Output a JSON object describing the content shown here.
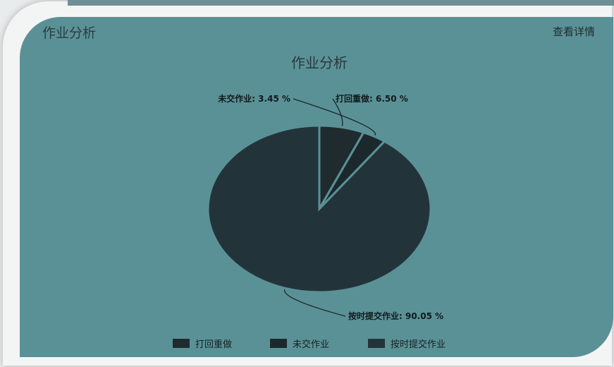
{
  "header": {
    "title": "作业分析",
    "detail_link": "查看详情"
  },
  "colors": {
    "panel_bg": "#5a9197",
    "slice_dark": "#1f2f33",
    "slice_mid": "#22343a",
    "label_text": "#101a1c"
  },
  "chart_data": {
    "type": "pie",
    "title": "作业分析",
    "slices": [
      {
        "name": "打回重做",
        "value": 6.5,
        "label": "打回重做: 6.50 %",
        "color": "#1f2b2e"
      },
      {
        "name": "未交作业",
        "value": 3.45,
        "label": "未交作业: 3.45 %",
        "color": "#1c292c"
      },
      {
        "name": "按时提交作业",
        "value": 90.05,
        "label": "按时提交作业: 90.05 %",
        "color": "#22343a"
      }
    ],
    "legend": {
      "placement": "bottom-center",
      "items": [
        "打回重做",
        "未交作业",
        "按时提交作业"
      ]
    }
  }
}
